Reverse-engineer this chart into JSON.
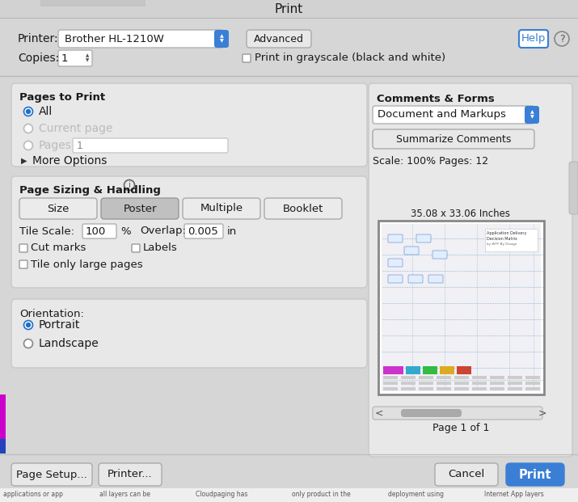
{
  "title": "Print",
  "bg_color": "#d6d6d6",
  "dialog_bg": "#e8e8e8",
  "white": "#ffffff",
  "blue_btn": "#3a7fd5",
  "blue_radio": "#1e6fcc",
  "printer_label": "Printer:",
  "printer_value": "Brother HL-1210W",
  "advanced_btn": "Advanced",
  "help_btn": "Help",
  "copies_label": "Copies:",
  "copies_value": "1",
  "grayscale_label": "Print in grayscale (black and white)",
  "pages_section": "Pages to Print",
  "all_label": "All",
  "current_page_label": "Current page",
  "pages_label": "Pages",
  "pages_value": "1",
  "more_options": "More Options",
  "sizing_section": "Page Sizing & Handling",
  "size_btn": "Size",
  "poster_btn": "Poster",
  "multiple_btn": "Multiple",
  "booklet_btn": "Booklet",
  "tile_scale_label": "Tile Scale:",
  "tile_scale_value": "100",
  "percent": "%",
  "overlap_label": "Overlap:",
  "overlap_value": "0.005",
  "in_label": "in",
  "cut_marks_label": "Cut marks",
  "labels_label": "Labels",
  "tile_only_label": "Tile only large pages",
  "orientation_label": "Orientation:",
  "portrait_label": "Portrait",
  "landscape_label": "Landscape",
  "page_setup_btn": "Page Setup...",
  "printer_btn2": "Printer...",
  "cancel_btn": "Cancel",
  "print_btn": "Print",
  "comments_section": "Comments & Forms",
  "comments_value": "Document and Markups",
  "summarize_btn": "Summarize Comments",
  "scale_label": "Scale: 100% Pages: 12",
  "page_size_label": "35.08 x 33.06 Inches",
  "page_nav": "Page 1 of 1",
  "taskbar_items": [
    "applications or app",
    "all layers can be",
    "Cloudpaging has",
    "only product in the",
    "deployment using",
    "Internet App layers"
  ]
}
